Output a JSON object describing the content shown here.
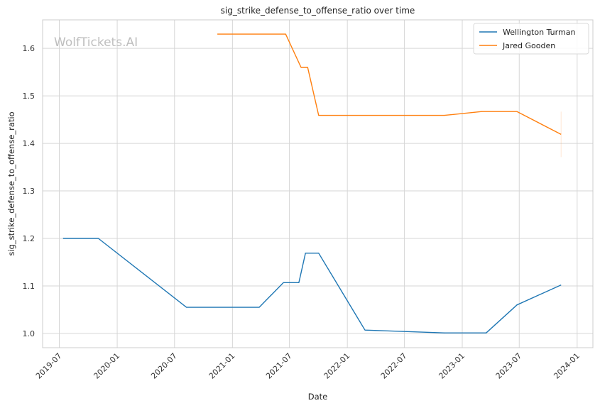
{
  "chart_data": {
    "type": "line",
    "title": "sig_strike_defense_to_offense_ratio over time",
    "xlabel": "Date",
    "ylabel": "sig_strike_defense_to_offense_ratio",
    "watermark": "WolfTickets.AI",
    "x_ticks": [
      "2019-07",
      "2020-01",
      "2020-07",
      "2021-01",
      "2021-07",
      "2022-01",
      "2022-07",
      "2023-01",
      "2023-07",
      "2024-01"
    ],
    "y_ticks": [
      "1.0",
      "1.1",
      "1.2",
      "1.3",
      "1.4",
      "1.5",
      "1.6"
    ],
    "xlim": [
      "2019-05-09",
      "2024-02-20"
    ],
    "ylim": [
      0.97,
      1.66
    ],
    "grid": true,
    "legend_position": "top-right",
    "colors": {
      "Wellington Turman": "#1f77b4",
      "Jared Gooden": "#ff7f0e"
    },
    "series": [
      {
        "name": "Wellington Turman",
        "points": [
          {
            "x": "2019-07-13",
            "y": 1.2
          },
          {
            "x": "2019-11-02",
            "y": 1.2
          },
          {
            "x": "2020-08-08",
            "y": 1.055
          },
          {
            "x": "2021-03-27",
            "y": 1.055
          },
          {
            "x": "2021-06-12",
            "y": 1.107
          },
          {
            "x": "2021-07-31",
            "y": 1.107
          },
          {
            "x": "2021-08-21",
            "y": 1.169
          },
          {
            "x": "2021-10-02",
            "y": 1.169
          },
          {
            "x": "2022-02-26",
            "y": 1.007
          },
          {
            "x": "2022-11-05",
            "y": 1.001
          },
          {
            "x": "2023-03-18",
            "y": 1.001
          },
          {
            "x": "2023-06-24",
            "y": 1.06
          },
          {
            "x": "2023-11-11",
            "y": 1.102
          }
        ]
      },
      {
        "name": "Jared Gooden",
        "points": [
          {
            "x": "2020-11-14",
            "y": 1.63
          },
          {
            "x": "2021-06-19",
            "y": 1.63
          },
          {
            "x": "2021-08-07",
            "y": 1.56
          },
          {
            "x": "2021-08-28",
            "y": 1.56
          },
          {
            "x": "2021-10-02",
            "y": 1.459
          },
          {
            "x": "2022-11-05",
            "y": 1.459
          },
          {
            "x": "2023-03-04",
            "y": 1.467
          },
          {
            "x": "2023-06-24",
            "y": 1.467
          },
          {
            "x": "2023-11-11",
            "y": 1.419
          }
        ]
      }
    ]
  }
}
